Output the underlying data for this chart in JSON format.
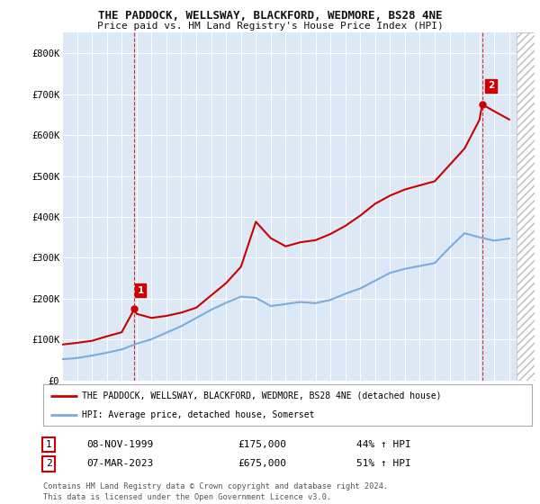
{
  "title": "THE PADDOCK, WELLSWAY, BLACKFORD, WEDMORE, BS28 4NE",
  "subtitle": "Price paid vs. HM Land Registry's House Price Index (HPI)",
  "background_color": "#ffffff",
  "plot_bg_color": "#dce8f5",
  "grid_color": "#ffffff",
  "ylim": [
    0,
    850000
  ],
  "yticks": [
    0,
    100000,
    200000,
    300000,
    400000,
    500000,
    600000,
    700000,
    800000
  ],
  "ytick_labels": [
    "£0",
    "£100K",
    "£200K",
    "£300K",
    "£400K",
    "£500K",
    "£600K",
    "£700K",
    "£800K"
  ],
  "xlim_start": 1995.3,
  "xlim_end": 2026.7,
  "xticks": [
    1995,
    1996,
    1997,
    1998,
    1999,
    2000,
    2001,
    2002,
    2003,
    2004,
    2005,
    2006,
    2007,
    2008,
    2009,
    2010,
    2011,
    2012,
    2013,
    2014,
    2015,
    2016,
    2017,
    2018,
    2019,
    2020,
    2021,
    2022,
    2023,
    2024,
    2025,
    2026
  ],
  "sale1_x": 1999.85,
  "sale1_y": 175000,
  "sale1_label": "1",
  "sale2_x": 2023.18,
  "sale2_y": 675000,
  "sale2_label": "2",
  "red_line_color": "#cc0000",
  "blue_line_color": "#7aacdc",
  "marker_color": "#cc0000",
  "legend_label_red": "THE PADDOCK, WELLSWAY, BLACKFORD, WEDMORE, BS28 4NE (detached house)",
  "legend_label_blue": "HPI: Average price, detached house, Somerset",
  "table_row1": [
    "1",
    "08-NOV-1999",
    "£175,000",
    "44% ↑ HPI"
  ],
  "table_row2": [
    "2",
    "07-MAR-2023",
    "£675,000",
    "51% ↑ HPI"
  ],
  "footer1": "Contains HM Land Registry data © Crown copyright and database right 2024.",
  "footer2": "This data is licensed under the Open Government Licence v3.0.",
  "hpi_x": [
    1995,
    1996,
    1997,
    1998,
    1999,
    2000,
    2001,
    2002,
    2003,
    2004,
    2005,
    2006,
    2007,
    2008,
    2009,
    2010,
    2011,
    2012,
    2013,
    2014,
    2015,
    2016,
    2017,
    2018,
    2019,
    2020,
    2021,
    2022,
    2023,
    2024,
    2025
  ],
  "hpi_y": [
    52000,
    55000,
    61000,
    68000,
    76000,
    90000,
    101000,
    117000,
    133000,
    153000,
    173000,
    190000,
    205000,
    202000,
    182000,
    187000,
    192000,
    189000,
    197000,
    212000,
    225000,
    244000,
    263000,
    273000,
    280000,
    287000,
    325000,
    360000,
    350000,
    342000,
    347000
  ],
  "red_x": [
    1995,
    1996,
    1997,
    1998,
    1999,
    1999.85,
    2000,
    2001,
    2002,
    2003,
    2004,
    2005,
    2006,
    2007,
    2008,
    2009,
    2010,
    2011,
    2012,
    2013,
    2014,
    2015,
    2016,
    2017,
    2018,
    2019,
    2020,
    2021,
    2022,
    2023,
    2023.18,
    2024,
    2025
  ],
  "red_y": [
    88000,
    92000,
    97000,
    108000,
    118000,
    175000,
    163000,
    153000,
    158000,
    166000,
    178000,
    208000,
    238000,
    278000,
    388000,
    348000,
    328000,
    338000,
    343000,
    358000,
    378000,
    403000,
    432000,
    452000,
    467000,
    477000,
    487000,
    527000,
    567000,
    637000,
    675000,
    658000,
    638000
  ]
}
